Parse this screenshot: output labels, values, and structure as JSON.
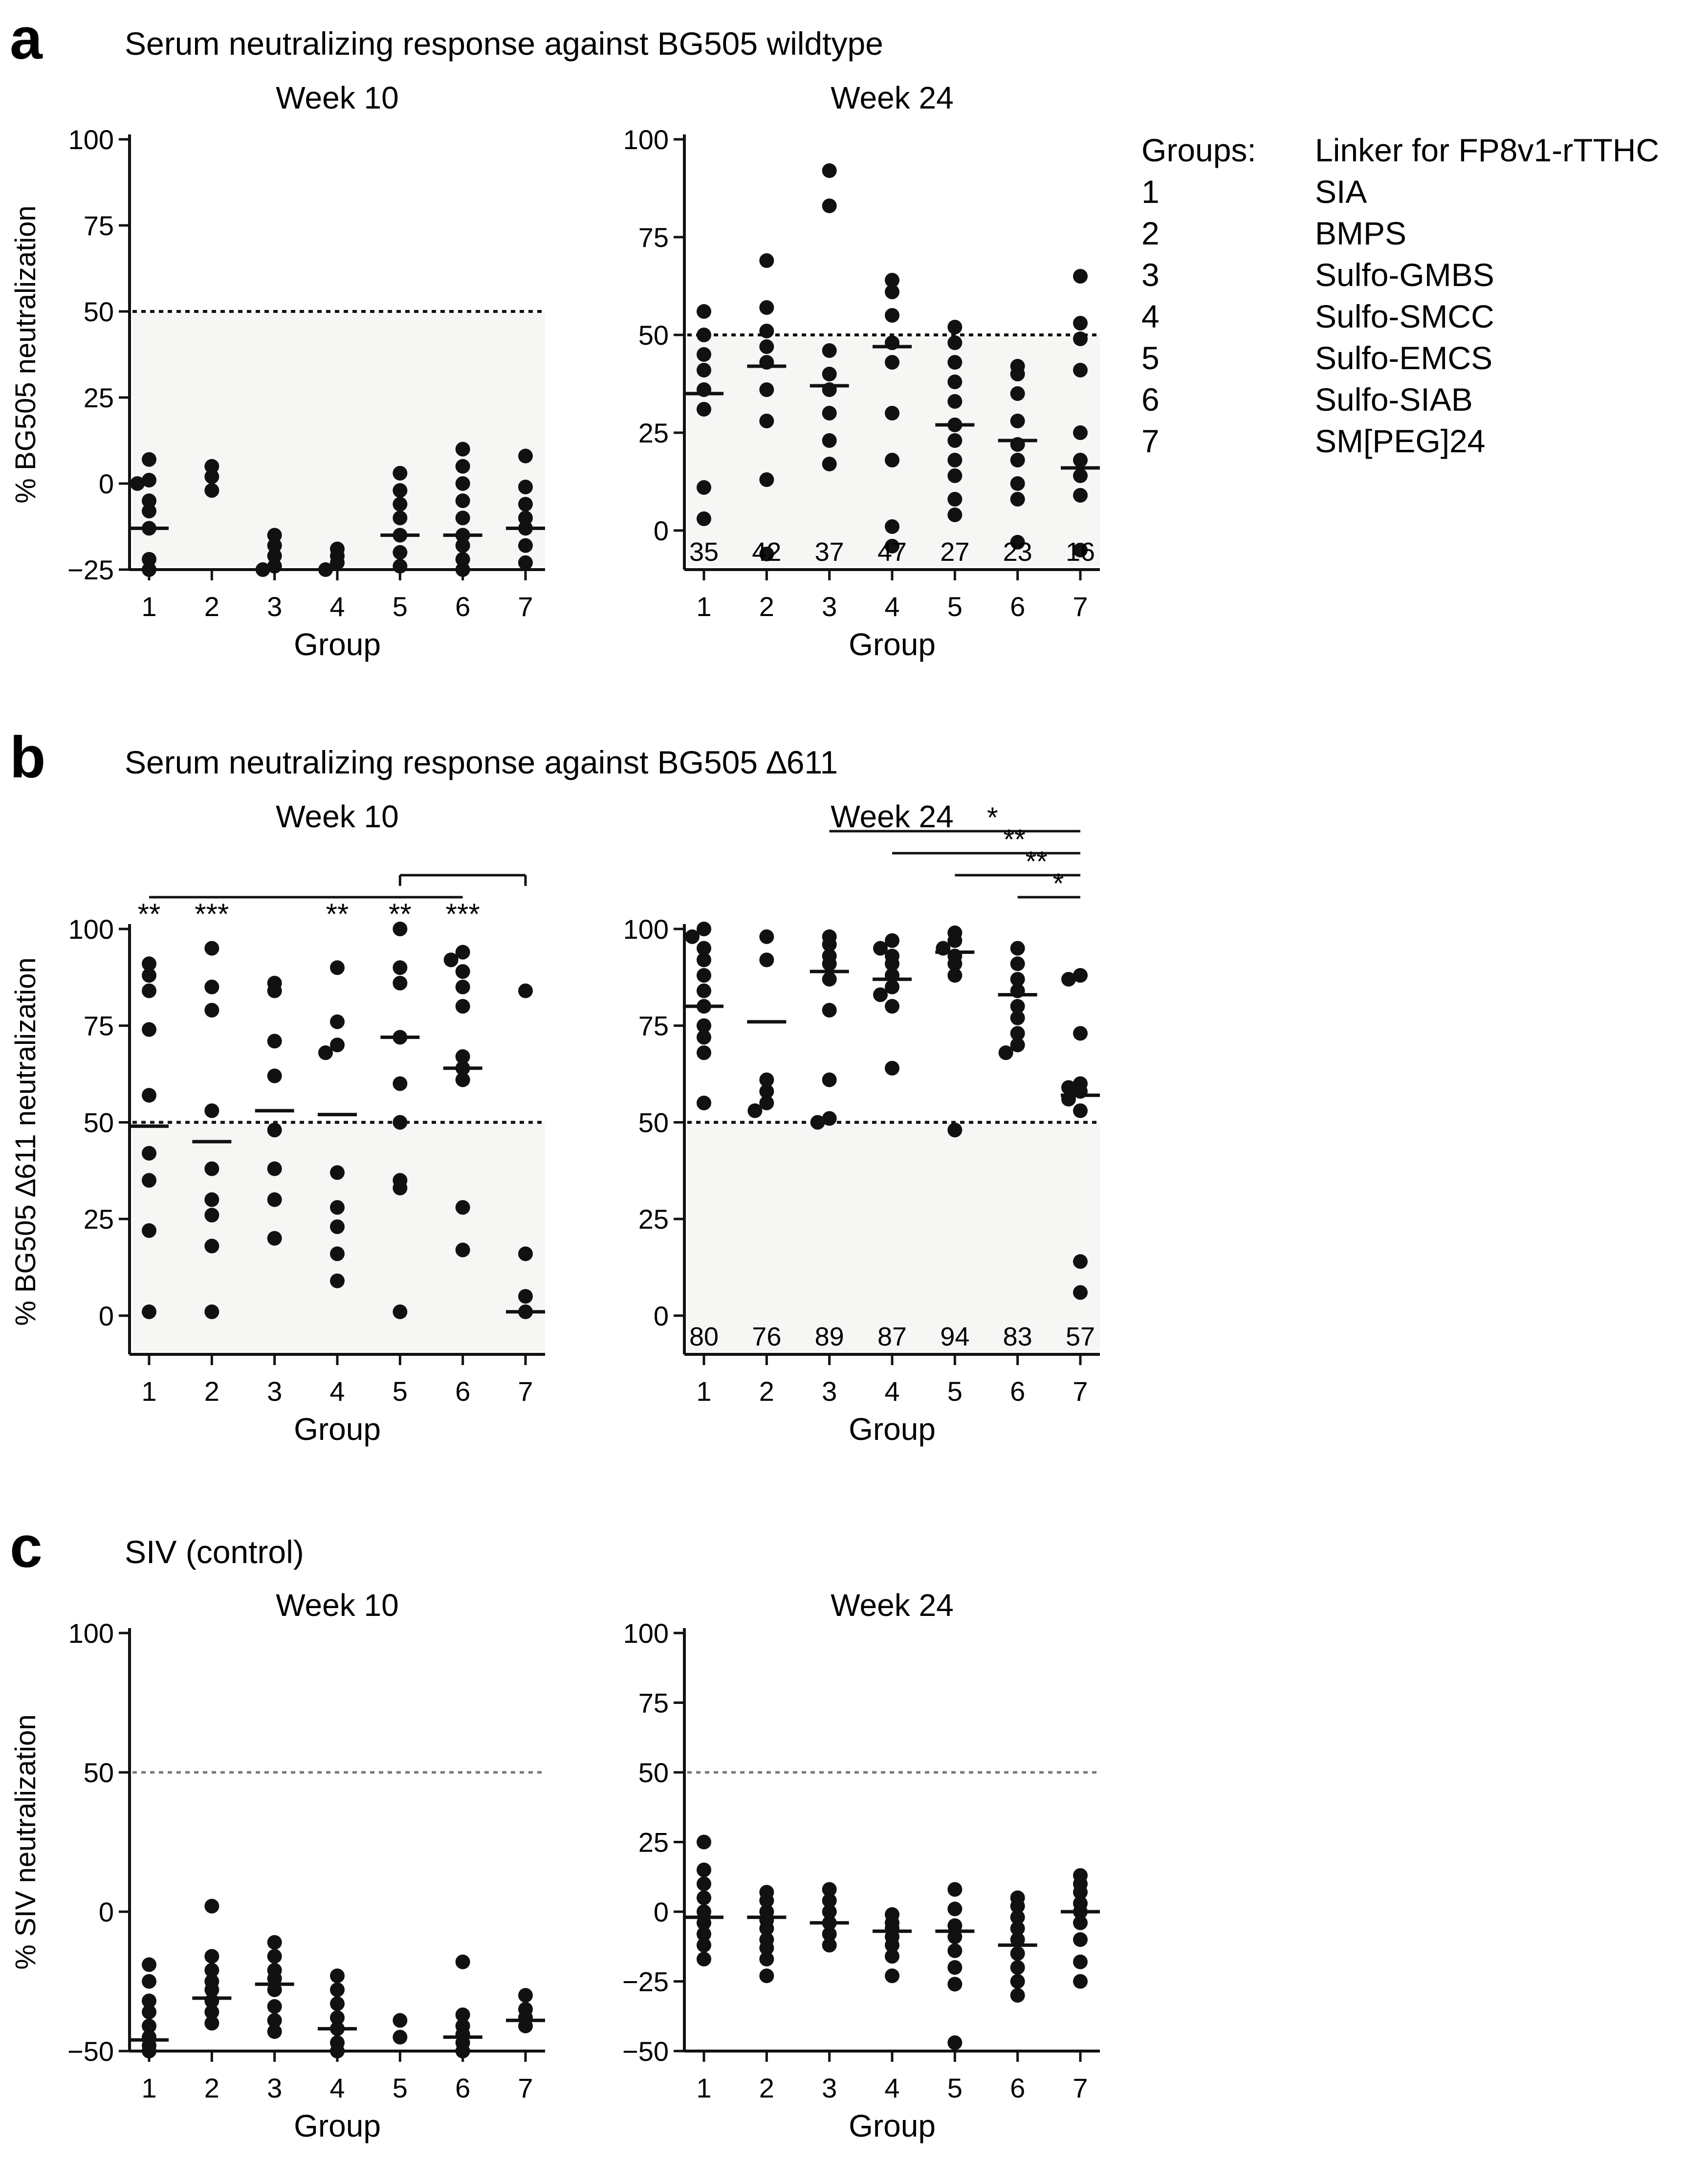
{
  "panels": [
    {
      "letter": "a",
      "title": "Serum neutralizing response against BG505 wildtype"
    },
    {
      "letter": "b",
      "title": "Serum neutralizing response against BG505 ∆611"
    },
    {
      "letter": "c",
      "title": "SIV (control)"
    }
  ],
  "legend": {
    "header_groups": "Groups:",
    "header_linker": "Linker for FP8v1-rTTHC",
    "rows": [
      {
        "group": "1",
        "linker": "SIA"
      },
      {
        "group": "2",
        "linker": "BMPS"
      },
      {
        "group": "3",
        "linker": "Sulfo-GMBS"
      },
      {
        "group": "4",
        "linker": "Sulfo-SMCC"
      },
      {
        "group": "5",
        "linker": "Sulfo-EMCS"
      },
      {
        "group": "6",
        "linker": "Sulfo-SIAB"
      },
      {
        "group": "7",
        "linker": "SM[PEG]24"
      }
    ]
  },
  "chart_data": [
    {
      "id": "a1",
      "panel": "a",
      "type": "scatter",
      "title": "Week 10",
      "xlabel": "Group",
      "ylabel": "% BG505 neutralization",
      "categories": [
        "1",
        "2",
        "3",
        "4",
        "5",
        "6",
        "7"
      ],
      "ylim": [
        -25,
        100
      ],
      "yticks": [
        -25,
        0,
        25,
        50,
        75,
        100
      ],
      "threshold": 50,
      "threshold_style": "black-dotted",
      "shade_below_threshold": true,
      "points": [
        [
          7,
          1,
          0,
          -5,
          -8,
          -13,
          -22,
          -25
        ],
        [
          5,
          2,
          -2
        ],
        [
          -15,
          -18,
          -21,
          -24,
          -25
        ],
        [
          -19,
          -21,
          -23,
          -25
        ],
        [
          3,
          -2,
          -6,
          -10,
          -15,
          -20,
          -24
        ],
        [
          10,
          5,
          0,
          -5,
          -10,
          -15,
          -18,
          -22,
          -25
        ],
        [
          8,
          -1,
          -6,
          -10,
          -13,
          -18,
          -23
        ]
      ],
      "medians": [
        -13,
        null,
        null,
        null,
        -15,
        -15,
        -13
      ],
      "median_labels": null,
      "significance": []
    },
    {
      "id": "a2",
      "panel": "a",
      "type": "scatter",
      "title": "Week 24",
      "xlabel": "Group",
      "ylabel": "",
      "categories": [
        "1",
        "2",
        "3",
        "4",
        "5",
        "6",
        "7"
      ],
      "ylim": [
        -10,
        100
      ],
      "yticks": [
        0,
        25,
        50,
        75,
        100
      ],
      "threshold": 50,
      "threshold_style": "black-dotted",
      "shade_below_threshold": true,
      "points": [
        [
          56,
          50,
          45,
          41,
          36,
          31,
          11,
          3
        ],
        [
          69,
          57,
          51,
          47,
          43,
          36,
          28,
          13,
          -6
        ],
        [
          92,
          83,
          46,
          40,
          36,
          30,
          23,
          17
        ],
        [
          64,
          61,
          55,
          48,
          43,
          30,
          18,
          1,
          -4
        ],
        [
          52,
          48,
          43,
          38,
          33,
          27,
          23,
          18,
          14,
          8,
          4
        ],
        [
          42,
          40,
          35,
          28,
          22,
          18,
          12,
          8,
          -3
        ],
        [
          65,
          53,
          49,
          41,
          25,
          18,
          14,
          9,
          -5
        ]
      ],
      "medians": [
        35,
        42,
        37,
        47,
        27,
        23,
        16
      ],
      "median_labels": [
        "35",
        "42",
        "37",
        "47",
        "27",
        "23",
        "16"
      ],
      "significance": []
    },
    {
      "id": "b1",
      "panel": "b",
      "type": "scatter",
      "title": "Week 10",
      "xlabel": "Group",
      "ylabel": "% BG505 ∆611 neutralization",
      "categories": [
        "1",
        "2",
        "3",
        "4",
        "5",
        "6",
        "7"
      ],
      "ylim": [
        -10,
        100
      ],
      "yticks": [
        0,
        25,
        50,
        75,
        100
      ],
      "threshold": 50,
      "threshold_style": "black-dotted",
      "shade_below_threshold": true,
      "points": [
        [
          91,
          88,
          84,
          74,
          57,
          42,
          35,
          22,
          1
        ],
        [
          95,
          85,
          79,
          53,
          38,
          30,
          26,
          18,
          1
        ],
        [
          86,
          84,
          71,
          62,
          48,
          38,
          30,
          20
        ],
        [
          90,
          76,
          70,
          68,
          37,
          28,
          23,
          16,
          9
        ],
        [
          100,
          90,
          86,
          72,
          60,
          50,
          35,
          33,
          1
        ],
        [
          94,
          92,
          89,
          85,
          80,
          67,
          64,
          61,
          28,
          17
        ],
        [
          84,
          16,
          5,
          1
        ]
      ],
      "medians": [
        49,
        45,
        53,
        52,
        72,
        64,
        1
      ],
      "median_labels": null,
      "significance": [
        {
          "from": 1,
          "to": 6,
          "label": "",
          "level": 1
        },
        {
          "from": 5,
          "to": 7,
          "label": "",
          "level": 2
        }
      ],
      "stars": [
        "**",
        "***",
        "",
        "**",
        "**",
        "***",
        ""
      ]
    },
    {
      "id": "b2",
      "panel": "b",
      "type": "scatter",
      "title": "Week 24",
      "xlabel": "Group",
      "ylabel": "",
      "categories": [
        "1",
        "2",
        "3",
        "4",
        "5",
        "6",
        "7"
      ],
      "ylim": [
        -10,
        100
      ],
      "yticks": [
        0,
        25,
        50,
        75,
        100
      ],
      "threshold": 50,
      "threshold_style": "black-dotted",
      "shade_below_threshold": true,
      "points": [
        [
          100,
          98,
          95,
          92,
          88,
          84,
          80,
          75,
          72,
          68,
          55
        ],
        [
          98,
          92,
          61,
          58,
          55,
          53
        ],
        [
          98,
          96,
          93,
          91,
          87,
          79,
          61,
          51,
          50
        ],
        [
          97,
          95,
          93,
          91,
          88,
          85,
          83,
          80,
          64
        ],
        [
          99,
          97,
          95,
          93,
          91,
          88,
          48
        ],
        [
          95,
          91,
          87,
          84,
          80,
          77,
          73,
          70,
          68
        ],
        [
          88,
          87,
          73,
          60,
          59,
          58,
          56,
          53,
          14,
          6
        ]
      ],
      "medians": [
        80,
        76,
        89,
        87,
        94,
        83,
        57
      ],
      "median_labels": [
        "80",
        "76",
        "89",
        "87",
        "94",
        "83",
        "57"
      ],
      "significance": [
        {
          "from": 3,
          "to": 7,
          "label": "*",
          "level": 4
        },
        {
          "from": 4,
          "to": 7,
          "label": "**",
          "level": 3
        },
        {
          "from": 5,
          "to": 7,
          "label": "**",
          "level": 2
        },
        {
          "from": 6,
          "to": 7,
          "label": "*",
          "level": 1
        }
      ]
    },
    {
      "id": "c1",
      "panel": "c",
      "type": "scatter",
      "title": "Week 10",
      "xlabel": "Group",
      "ylabel": "% SIV neutralization",
      "categories": [
        "1",
        "2",
        "3",
        "4",
        "5",
        "6",
        "7"
      ],
      "ylim": [
        -50,
        100
      ],
      "yticks": [
        -50,
        0,
        50,
        100
      ],
      "threshold": 50,
      "threshold_style": "gray-dotted",
      "shade_below_threshold": false,
      "points": [
        [
          -19,
          -25,
          -32,
          -36,
          -41,
          -45,
          -48,
          -50
        ],
        [
          2,
          -16,
          -21,
          -25,
          -28,
          -32,
          -36,
          -40
        ],
        [
          -11,
          -16,
          -21,
          -24,
          -28,
          -34,
          -39,
          -43
        ],
        [
          -23,
          -28,
          -33,
          -38,
          -42,
          -47,
          -50
        ],
        [
          -39,
          -45
        ],
        [
          -18,
          -37,
          -41,
          -44,
          -47,
          -50
        ],
        [
          -30,
          -35,
          -38,
          -41
        ]
      ],
      "medians": [
        -46,
        -31,
        -26,
        -42,
        null,
        -45,
        -39
      ],
      "median_labels": null,
      "significance": []
    },
    {
      "id": "c2",
      "panel": "c",
      "type": "scatter",
      "title": "Week 24",
      "xlabel": "Group",
      "ylabel": "",
      "categories": [
        "1",
        "2",
        "3",
        "4",
        "5",
        "6",
        "7"
      ],
      "ylim": [
        -50,
        100
      ],
      "yticks": [
        -50,
        -25,
        0,
        25,
        50,
        75,
        100
      ],
      "threshold": 50,
      "threshold_style": "gray-dotted",
      "shade_below_threshold": false,
      "points": [
        [
          25,
          15,
          10,
          5,
          0,
          -4,
          -8,
          -12,
          -17
        ],
        [
          7,
          4,
          0,
          -3,
          -6,
          -10,
          -13,
          -17,
          -23
        ],
        [
          8,
          4,
          0,
          -4,
          -8,
          -12
        ],
        [
          -1,
          -4,
          -6,
          -9,
          -12,
          -16,
          -23
        ],
        [
          8,
          1,
          -5,
          -9,
          -14,
          -20,
          -26,
          -47
        ],
        [
          5,
          2,
          -2,
          -6,
          -10,
          -15,
          -20,
          -25,
          -30
        ],
        [
          13,
          10,
          7,
          3,
          0,
          -4,
          -10,
          -18,
          -25
        ]
      ],
      "medians": [
        -2,
        -2,
        -4,
        -7,
        -7,
        -12,
        0
      ],
      "median_labels": null,
      "significance": []
    }
  ]
}
